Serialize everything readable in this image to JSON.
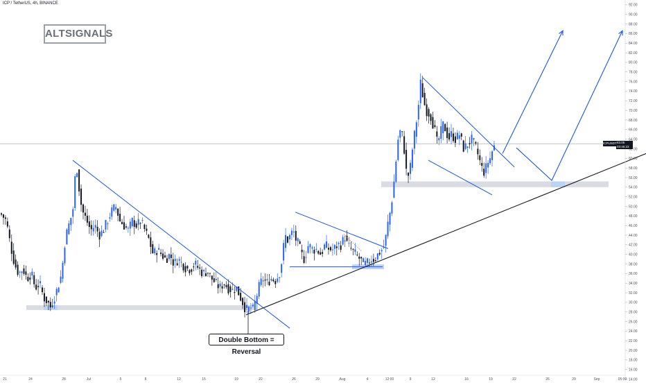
{
  "header": {
    "title": "ICP / TetherUS, 4h, BINANCE"
  },
  "watermark": {
    "text": "ALTSIGNALS"
  },
  "price_label": {
    "symbol": "ICPUSDT",
    "price": "63.05",
    "countdown": "03:45:23"
  },
  "annotation": {
    "text": "Double Bottom = Reversal"
  },
  "colors": {
    "up": "#2962ff",
    "down": "#131722",
    "trendline": "#1e53e5",
    "support": "#131722",
    "zone": "#d9dde3",
    "zone_highlight": "#bcd3f5",
    "crosshair": "#9aa0a6"
  },
  "chart_data": {
    "type": "candlestick",
    "title": "ICP / TetherUS, 4h, BINANCE",
    "xlabel": "",
    "ylabel": "",
    "ylim": [
      13.5,
      93
    ],
    "grid": false,
    "last_price": 63.05,
    "y_ticks": [
      "92.00",
      "90.00",
      "88.00",
      "86.00",
      "84.00",
      "82.00",
      "80.00",
      "78.00",
      "76.00",
      "74.00",
      "72.00",
      "70.00",
      "68.00",
      "66.00",
      "64.00",
      "62.00",
      "60.00",
      "58.00",
      "56.00",
      "54.00",
      "52.00",
      "50.00",
      "48.00",
      "46.00",
      "44.00",
      "42.00",
      "40.00",
      "38.00",
      "36.00",
      "34.00",
      "32.00",
      "30.00",
      "28.00",
      "26.00",
      "24.00",
      "22.00",
      "20.00",
      "18.00",
      "16.00",
      "14.00"
    ],
    "x_ticks": [
      "21",
      "24",
      "28",
      "Jul",
      "5",
      "8",
      "12",
      "15",
      "19",
      "22",
      "26",
      "29",
      "Aug",
      "4",
      "12:00",
      "9",
      "12",
      "16",
      "19",
      "22",
      "26",
      "29",
      "Sep",
      "05:00"
    ],
    "price_path": [
      [
        0,
        48.5
      ],
      [
        8,
        47
      ],
      [
        14,
        42
      ],
      [
        20,
        38
      ],
      [
        26,
        36
      ],
      [
        32,
        37
      ],
      [
        38,
        35
      ],
      [
        44,
        36
      ],
      [
        50,
        33
      ],
      [
        56,
        34
      ],
      [
        62,
        31
      ],
      [
        68,
        30
      ],
      [
        72,
        29
      ],
      [
        76,
        30.5
      ],
      [
        82,
        33
      ],
      [
        88,
        36
      ],
      [
        92,
        42
      ],
      [
        96,
        45
      ],
      [
        100,
        47
      ],
      [
        104,
        49
      ],
      [
        108,
        57.5
      ],
      [
        111,
        58
      ],
      [
        114,
        52
      ],
      [
        118,
        49
      ],
      [
        124,
        47
      ],
      [
        130,
        45
      ],
      [
        136,
        46
      ],
      [
        142,
        44
      ],
      [
        148,
        45
      ],
      [
        154,
        47
      ],
      [
        160,
        49
      ],
      [
        166,
        50
      ],
      [
        172,
        47
      ],
      [
        178,
        46
      ],
      [
        184,
        45
      ],
      [
        190,
        47
      ],
      [
        196,
        46
      ],
      [
        202,
        47
      ],
      [
        208,
        45
      ],
      [
        214,
        43
      ],
      [
        220,
        40
      ],
      [
        226,
        41
      ],
      [
        232,
        40
      ],
      [
        238,
        39
      ],
      [
        244,
        40
      ],
      [
        250,
        38
      ],
      [
        256,
        39
      ],
      [
        262,
        38
      ],
      [
        268,
        37
      ],
      [
        274,
        37
      ],
      [
        280,
        38
      ],
      [
        286,
        37
      ],
      [
        292,
        36
      ],
      [
        298,
        36.5
      ],
      [
        304,
        35
      ],
      [
        310,
        34
      ],
      [
        316,
        33
      ],
      [
        322,
        34
      ],
      [
        328,
        33
      ],
      [
        334,
        32.5
      ],
      [
        340,
        33
      ],
      [
        346,
        31
      ],
      [
        352,
        29
      ],
      [
        356,
        28.3
      ],
      [
        360,
        29
      ],
      [
        364,
        28.5
      ],
      [
        368,
        30.5
      ],
      [
        372,
        33
      ],
      [
        378,
        35
      ],
      [
        384,
        34
      ],
      [
        390,
        35
      ],
      [
        396,
        34.5
      ],
      [
        402,
        36
      ],
      [
        406,
        39
      ],
      [
        410,
        44
      ],
      [
        414,
        43
      ],
      [
        418,
        44
      ],
      [
        422,
        45
      ],
      [
        426,
        43
      ],
      [
        430,
        42
      ],
      [
        434,
        40
      ],
      [
        438,
        39
      ],
      [
        444,
        42
      ],
      [
        450,
        41
      ],
      [
        456,
        41
      ],
      [
        462,
        40
      ],
      [
        468,
        42
      ],
      [
        474,
        41
      ],
      [
        480,
        41
      ],
      [
        486,
        42
      ],
      [
        492,
        42
      ],
      [
        496,
        44
      ],
      [
        500,
        42
      ],
      [
        506,
        41
      ],
      [
        512,
        40
      ],
      [
        518,
        39
      ],
      [
        524,
        38
      ],
      [
        528,
        38
      ],
      [
        534,
        39
      ],
      [
        540,
        39
      ],
      [
        544,
        40
      ],
      [
        550,
        41
      ],
      [
        554,
        42
      ],
      [
        558,
        46
      ],
      [
        562,
        49
      ],
      [
        566,
        53
      ],
      [
        570,
        59
      ],
      [
        574,
        65
      ],
      [
        578,
        66
      ],
      [
        582,
        62
      ],
      [
        586,
        56
      ],
      [
        590,
        57
      ],
      [
        594,
        62
      ],
      [
        598,
        66
      ],
      [
        602,
        70
      ],
      [
        606,
        76
      ],
      [
        610,
        72
      ],
      [
        614,
        70
      ],
      [
        620,
        69
      ],
      [
        626,
        66
      ],
      [
        630,
        63
      ],
      [
        634,
        65
      ],
      [
        638,
        67
      ],
      [
        642,
        66
      ],
      [
        646,
        64
      ],
      [
        650,
        65
      ],
      [
        656,
        64
      ],
      [
        662,
        65
      ],
      [
        668,
        62
      ],
      [
        674,
        63
      ],
      [
        680,
        64
      ],
      [
        686,
        62
      ],
      [
        690,
        60
      ],
      [
        694,
        58
      ],
      [
        698,
        57
      ],
      [
        702,
        59
      ],
      [
        706,
        60
      ],
      [
        710,
        62
      ],
      [
        714,
        63.05
      ]
    ],
    "drawings": {
      "resistance_lines": [
        {
          "x": [
            105,
            418
          ],
          "y": [
            59.6,
            24.6
          ]
        },
        {
          "x": [
            426,
            560
          ],
          "y": [
            48.8,
            41.2
          ]
        },
        {
          "x": [
            610,
            742
          ],
          "y": [
            76.8,
            58.2
          ]
        }
      ],
      "support_lines": [
        {
          "x": [
            418,
            552
          ],
          "y": [
            37.4,
            37.4
          ]
        },
        {
          "x": [
            618,
            710
          ],
          "y": [
            59.6,
            52.4
          ]
        }
      ],
      "long_trendline": {
        "x": [
          355,
          932
        ],
        "y": [
          27.4,
          61.0
        ]
      },
      "support_zones": [
        {
          "x": [
            38,
            368
          ],
          "y": [
            28.4,
            29.4
          ]
        },
        {
          "x": [
            550,
            878
          ],
          "y": [
            54.0,
            55.2
          ]
        }
      ],
      "projection_arrows": [
        {
          "x": [
            725,
            812
          ],
          "y": [
            61.0,
            86.6
          ]
        },
        {
          "x": [
            745,
            796,
            898
          ],
          "y": [
            62.2,
            55.4,
            86.6
          ]
        }
      ]
    }
  }
}
